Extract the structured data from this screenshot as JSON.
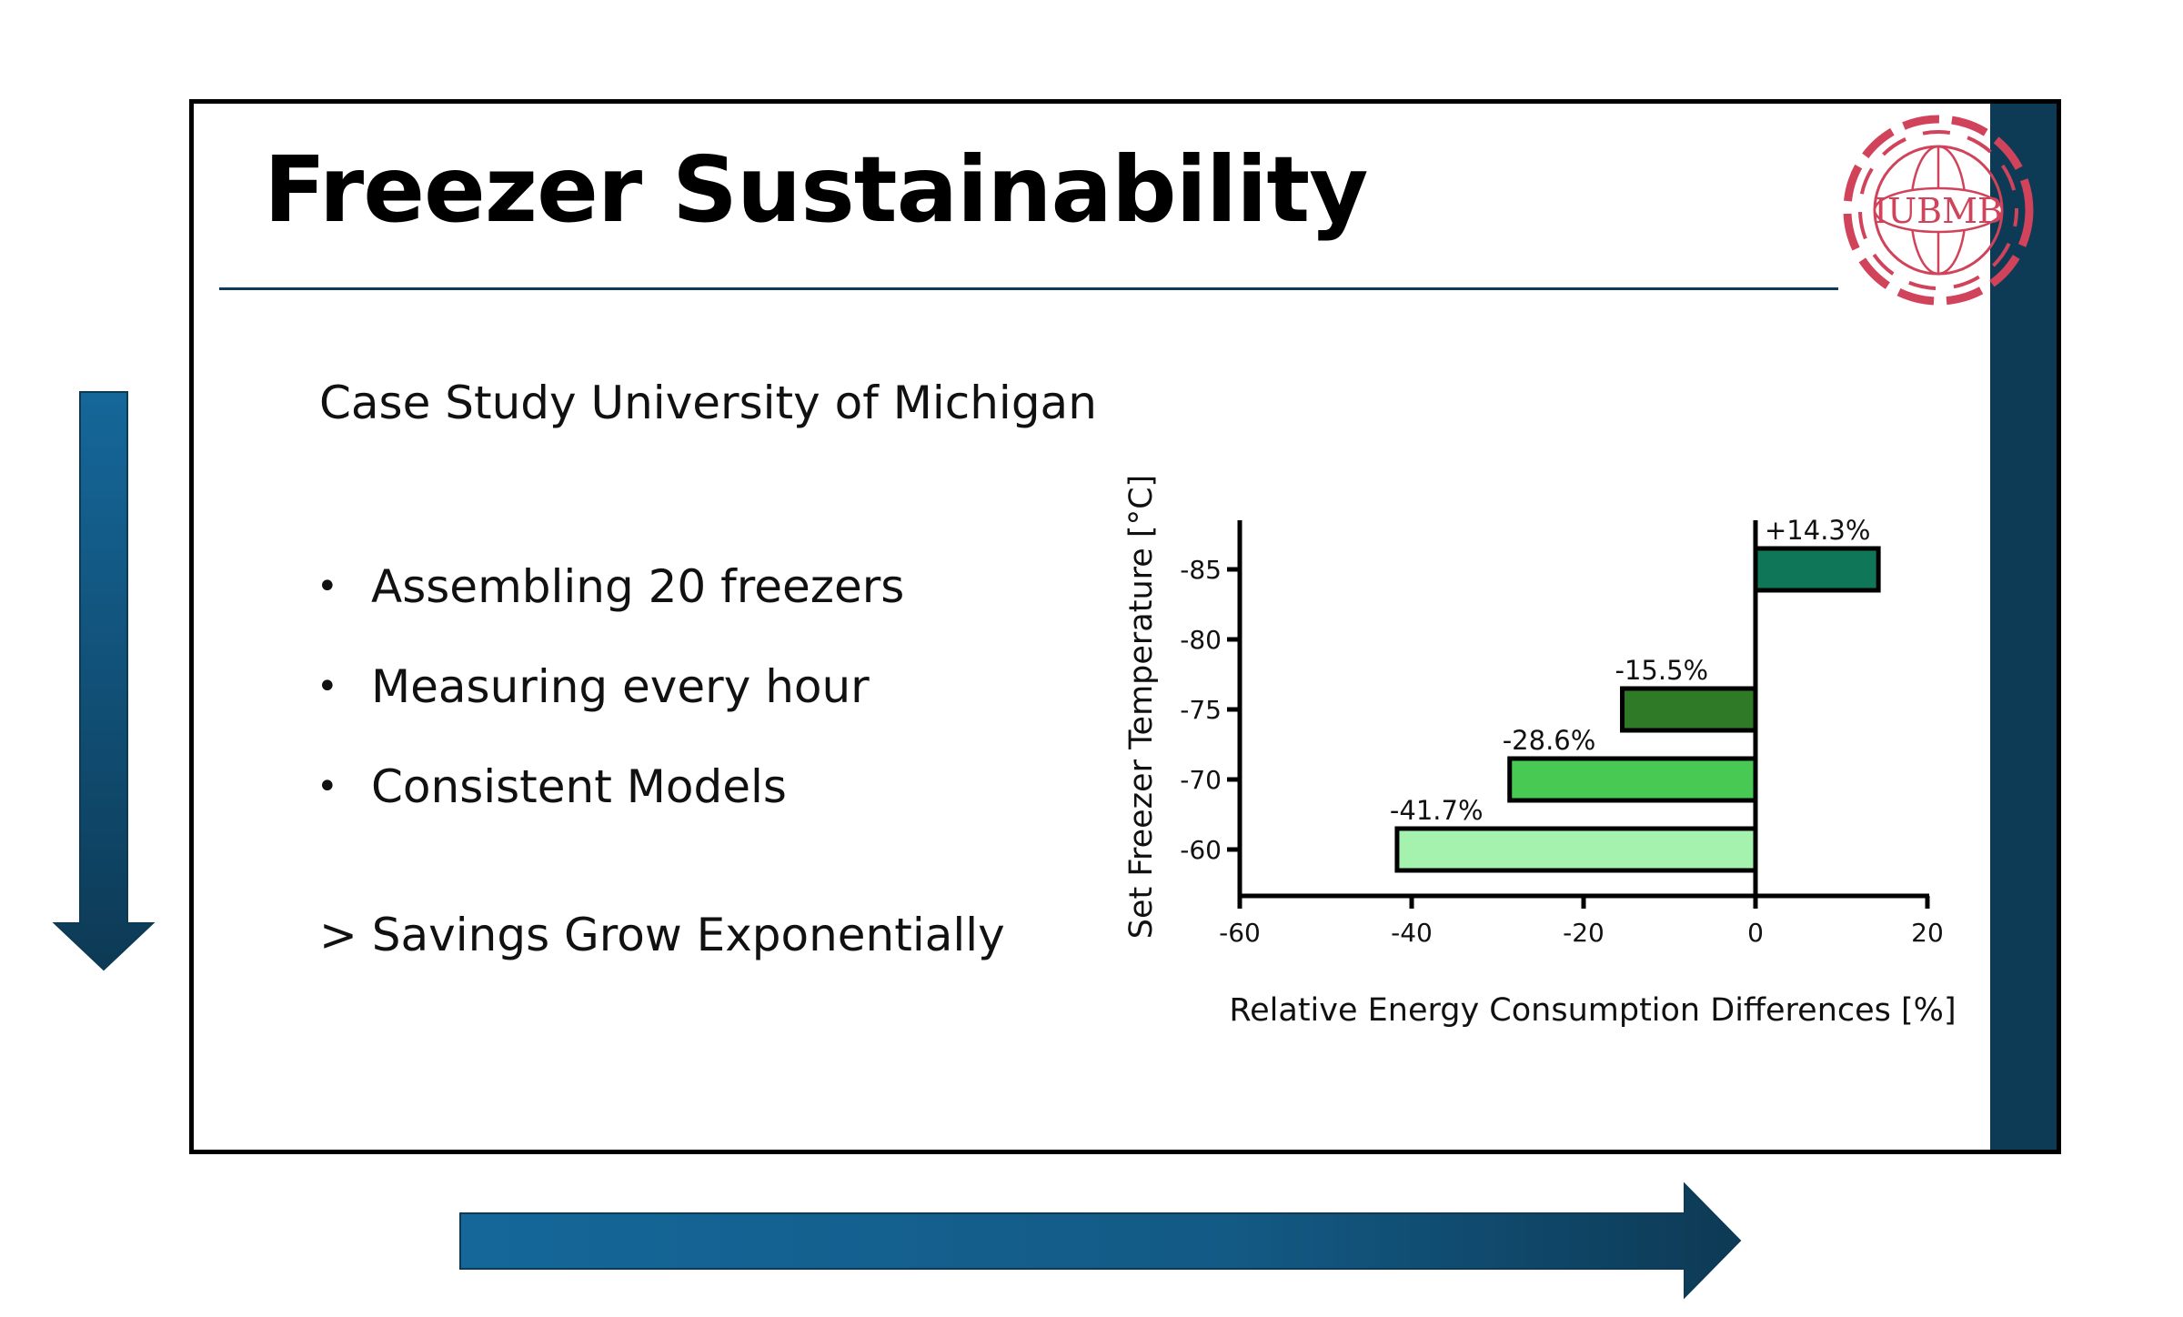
{
  "slide": {
    "title": "Freezer Sustainability",
    "subtitle": "Case Study University of Michigan",
    "bullets": [
      "Assembling 20 freezers",
      "Measuring every hour",
      "Consistent Models"
    ],
    "conclusion": "> Savings Grow Exponentially",
    "logo_text": "IUBMB",
    "colors": {
      "dark": "#0d3a55",
      "accent_blue": "#15679a",
      "logo_red": "#d0435a"
    }
  },
  "chart_data": {
    "type": "bar",
    "orientation": "horizontal",
    "categories": [
      "-85",
      "-80",
      "-75",
      "-70",
      "-60"
    ],
    "values": [
      14.3,
      null,
      -15.5,
      -28.6,
      -41.7
    ],
    "labels": [
      "+14.3%",
      "",
      "-15.5%",
      "-28.6%",
      "-41.7%"
    ],
    "colors": [
      "#0f7657",
      null,
      "#2f7a27",
      "#47c954",
      "#a5f2ae"
    ],
    "xlabel": "Relative Energy Consumption Differences [%]",
    "ylabel": "Set Freezer Temperature [°C]",
    "xlim": [
      -60,
      20
    ],
    "xticks": [
      "-60",
      "-40",
      "-20",
      "0",
      "20"
    ],
    "grid": false
  }
}
